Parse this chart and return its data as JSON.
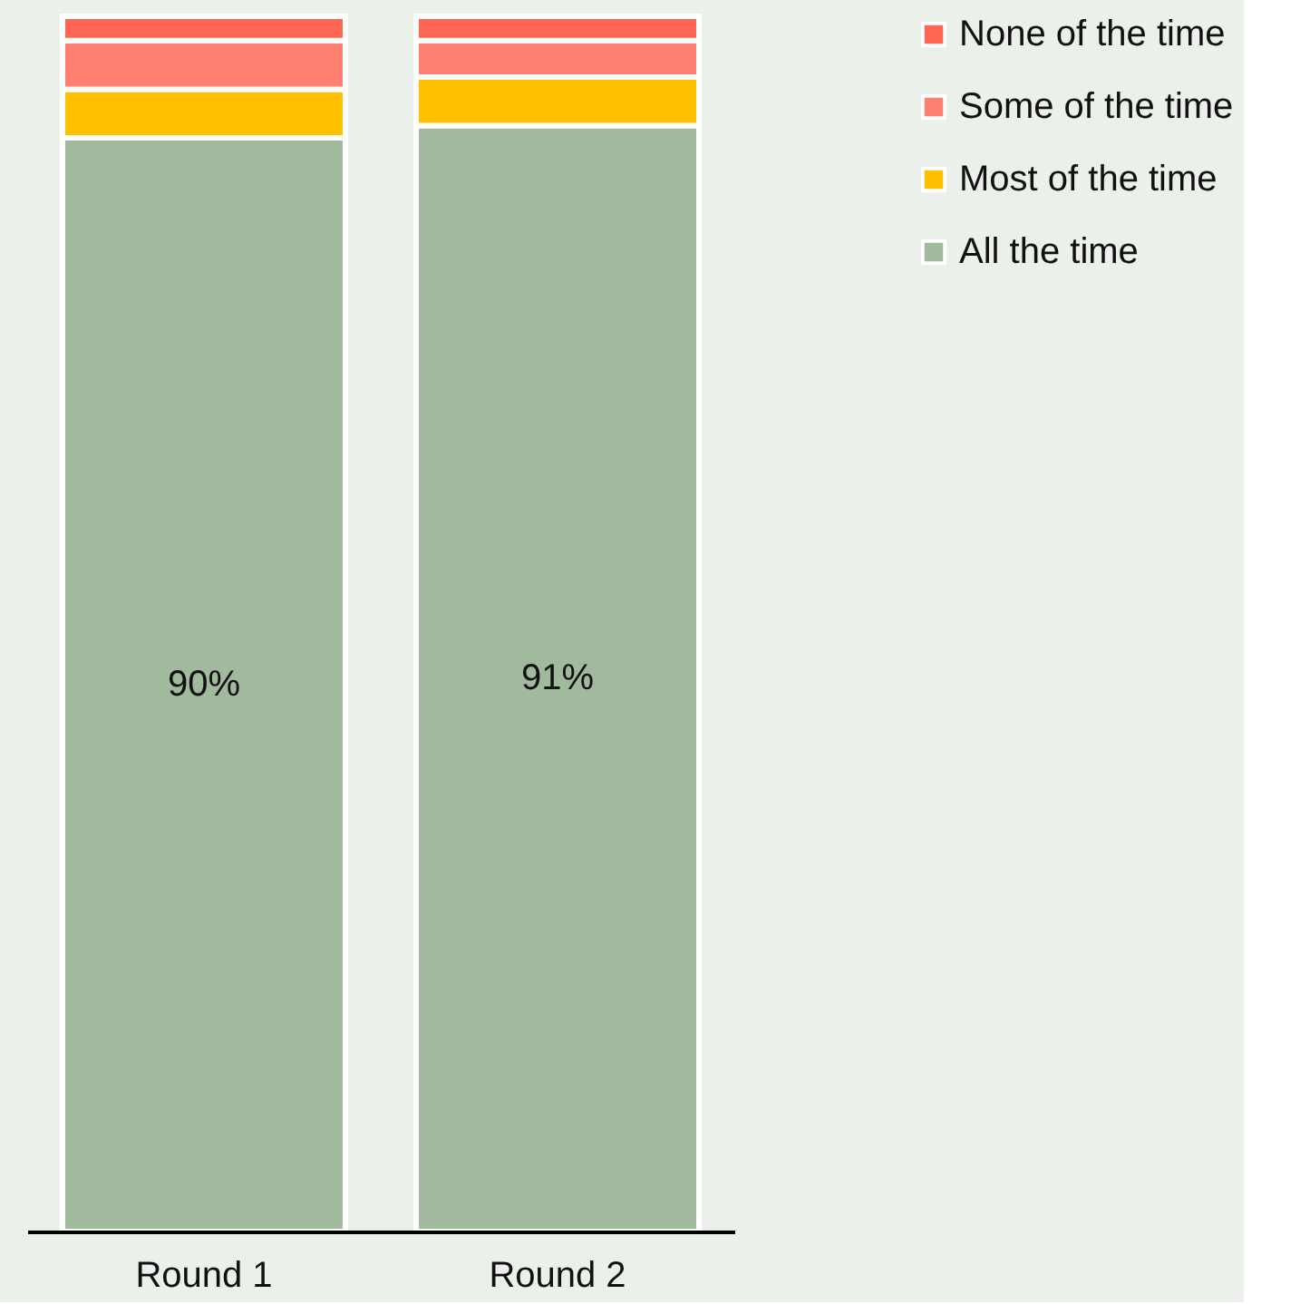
{
  "chart_data": {
    "type": "bar",
    "stacked": true,
    "categories": [
      "Round 1",
      "Round 2"
    ],
    "series": [
      {
        "name": "All the time",
        "color": "#a1b99d",
        "values": [
          90,
          91
        ],
        "value_labels": [
          "90%",
          "91%"
        ]
      },
      {
        "name": "Most of the time",
        "color": "#ffc000",
        "values": [
          4,
          4
        ]
      },
      {
        "name": "Some of the time",
        "color": "#ff7f71",
        "values": [
          4,
          3
        ]
      },
      {
        "name": "None of the time",
        "color": "#ff6550",
        "values": [
          2,
          2
        ]
      }
    ],
    "legend": "top right"
  }
}
